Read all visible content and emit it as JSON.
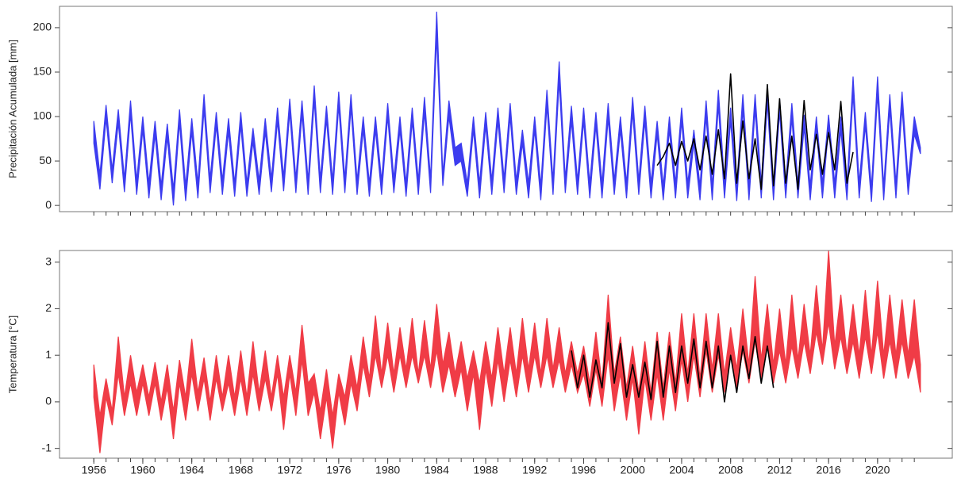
{
  "chart_data": [
    {
      "type": "band",
      "ylabel": "Precipitación Acumulada [mm]",
      "xlim": [
        1953.2,
        2026.1
      ],
      "ylim": [
        -7,
        224
      ],
      "yticks": [
        0,
        50,
        100,
        150,
        200
      ],
      "xminor": [
        1956,
        1957,
        1958,
        1959,
        1960,
        1961,
        1962,
        1963,
        1964,
        1965,
        1966,
        1967,
        1968,
        1969,
        1970,
        1971,
        1972,
        1973,
        1974,
        1975,
        1976,
        1977,
        1978,
        1979,
        1980,
        1981,
        1982,
        1983,
        1984,
        1985,
        1986,
        1987,
        1988,
        1989,
        1990,
        1991,
        1992,
        1993,
        1994,
        1995,
        1996,
        1997,
        1998,
        1999,
        2000,
        2001,
        2002,
        2003,
        2004,
        2005,
        2006,
        2007,
        2008,
        2009,
        2010,
        2011,
        2012,
        2013,
        2014,
        2015,
        2016,
        2017,
        2018,
        2019,
        2020,
        2021,
        2022,
        2023
      ],
      "x": [
        1956,
        1956.5,
        1957,
        1957.5,
        1958,
        1958.5,
        1959,
        1959.5,
        1960,
        1960.5,
        1961,
        1961.5,
        1962,
        1962.5,
        1963,
        1963.5,
        1964,
        1964.5,
        1965,
        1965.5,
        1966,
        1966.5,
        1967,
        1967.5,
        1968,
        1968.5,
        1969,
        1969.5,
        1970,
        1970.5,
        1971,
        1971.5,
        1972,
        1972.5,
        1973,
        1973.5,
        1974,
        1974.5,
        1975,
        1975.5,
        1976,
        1976.5,
        1977,
        1977.5,
        1978,
        1978.5,
        1979,
        1979.5,
        1980,
        1980.5,
        1981,
        1981.5,
        1982,
        1982.5,
        1983,
        1983.5,
        1984,
        1984.5,
        1985,
        1985.5,
        1986,
        1986.5,
        1987,
        1987.5,
        1988,
        1988.5,
        1989,
        1989.5,
        1990,
        1990.5,
        1991,
        1991.5,
        1992,
        1992.5,
        1993,
        1993.5,
        1994,
        1994.5,
        1995,
        1995.5,
        1996,
        1996.5,
        1997,
        1997.5,
        1998,
        1998.5,
        1999,
        1999.5,
        2000,
        2000.5,
        2001,
        2001.5,
        2002,
        2002.5,
        2003,
        2003.5,
        2004,
        2004.5,
        2005,
        2005.5,
        2006,
        2006.5,
        2007,
        2007.5,
        2008,
        2008.5,
        2009,
        2009.5,
        2010,
        2010.5,
        2011,
        2011.5,
        2012,
        2012.5,
        2013,
        2013.5,
        2014,
        2014.5,
        2015,
        2015.5,
        2016,
        2016.5,
        2017,
        2017.5,
        2018,
        2018.5,
        2019,
        2019.5,
        2020,
        2020.5,
        2021,
        2021.5,
        2022,
        2022.5,
        2023,
        2023.5
      ],
      "series": [
        {
          "color": "#3c3cef",
          "upper": [
            95,
            35,
            113,
            40,
            108,
            30,
            118,
            28,
            100,
            25,
            95,
            22,
            92,
            18,
            108,
            22,
            98,
            25,
            125,
            30,
            105,
            28,
            98,
            25,
            105,
            25,
            87,
            28,
            98,
            30,
            110,
            32,
            120,
            30,
            118,
            28,
            135,
            30,
            112,
            28,
            128,
            30,
            125,
            28,
            100,
            25,
            100,
            28,
            115,
            30,
            100,
            25,
            110,
            28,
            122,
            30,
            218,
            35,
            118,
            65,
            70,
            25,
            100,
            25,
            105,
            28,
            110,
            30,
            115,
            28,
            85,
            25,
            100,
            22,
            130,
            28,
            162,
            30,
            112,
            28,
            110,
            25,
            105,
            25,
            115,
            28,
            100,
            25,
            122,
            28,
            112,
            25,
            95,
            22,
            100,
            25,
            110,
            25,
            85,
            22,
            118,
            22,
            130,
            25,
            110,
            22,
            125,
            22,
            125,
            25,
            132,
            22,
            120,
            25,
            115,
            25,
            102,
            22,
            100,
            25,
            102,
            25,
            100,
            22,
            145,
            25,
            105,
            20,
            145,
            22,
            125,
            25,
            128,
            28,
            100,
            65
          ],
          "lower": [
            70,
            18,
            98,
            25,
            93,
            15,
            103,
            12,
            85,
            8,
            80,
            6,
            77,
            0,
            93,
            5,
            83,
            8,
            108,
            14,
            90,
            12,
            83,
            10,
            90,
            10,
            72,
            12,
            83,
            15,
            95,
            16,
            105,
            14,
            103,
            12,
            118,
            14,
            97,
            12,
            112,
            14,
            110,
            12,
            85,
            10,
            85,
            12,
            100,
            14,
            85,
            10,
            95,
            12,
            105,
            14,
            190,
            22,
            100,
            45,
            50,
            10,
            85,
            8,
            90,
            12,
            95,
            14,
            100,
            12,
            70,
            8,
            85,
            6,
            112,
            12,
            140,
            14,
            95,
            12,
            95,
            8,
            90,
            8,
            98,
            12,
            85,
            8,
            105,
            12,
            95,
            8,
            80,
            6,
            85,
            8,
            95,
            8,
            70,
            6,
            100,
            6,
            112,
            8,
            95,
            5,
            108,
            6,
            108,
            8,
            115,
            6,
            105,
            8,
            98,
            8,
            88,
            6,
            85,
            8,
            88,
            8,
            85,
            6,
            125,
            8,
            90,
            4,
            125,
            6,
            108,
            8,
            110,
            12,
            80,
            58
          ]
        }
      ],
      "lines": [
        {
          "color": "#000000",
          "x": [
            2002,
            2002.5,
            2003,
            2003.5,
            2004,
            2004.5,
            2005,
            2005.5,
            2006,
            2006.5,
            2007,
            2007.5,
            2008,
            2008.5,
            2009,
            2009.5,
            2010,
            2010.5,
            2011,
            2011.5,
            2012,
            2012.5,
            2013,
            2013.5,
            2014,
            2014.5,
            2015,
            2015.5,
            2016,
            2016.5,
            2017,
            2017.5,
            2018
          ],
          "values": [
            45,
            55,
            70,
            45,
            72,
            50,
            75,
            40,
            78,
            35,
            85,
            30,
            148,
            25,
            95,
            30,
            75,
            18,
            136,
            22,
            120,
            25,
            78,
            18,
            118,
            40,
            80,
            35,
            82,
            40,
            117,
            25,
            60
          ]
        }
      ]
    },
    {
      "type": "band",
      "ylabel": "Temperatura [°C]",
      "xlim": [
        1953.2,
        2026.1
      ],
      "ylim": [
        -1.21,
        3.25
      ],
      "yticks": [
        -1,
        0,
        1,
        2,
        3
      ],
      "xticks": [
        1956,
        1960,
        1964,
        1968,
        1972,
        1976,
        1980,
        1984,
        1988,
        1992,
        1996,
        2000,
        2004,
        2008,
        2012,
        2016,
        2020
      ],
      "xminor": [
        1956,
        1957,
        1958,
        1959,
        1960,
        1961,
        1962,
        1963,
        1964,
        1965,
        1966,
        1967,
        1968,
        1969,
        1970,
        1971,
        1972,
        1973,
        1974,
        1975,
        1976,
        1977,
        1978,
        1979,
        1980,
        1981,
        1982,
        1983,
        1984,
        1985,
        1986,
        1987,
        1988,
        1989,
        1990,
        1991,
        1992,
        1993,
        1994,
        1995,
        1996,
        1997,
        1998,
        1999,
        2000,
        2001,
        2002,
        2003,
        2004,
        2005,
        2006,
        2007,
        2008,
        2009,
        2010,
        2011,
        2012,
        2013,
        2014,
        2015,
        2016,
        2017,
        2018,
        2019,
        2020,
        2021,
        2022,
        2023
      ],
      "x": [
        1956,
        1956.5,
        1957,
        1957.5,
        1958,
        1958.5,
        1959,
        1959.5,
        1960,
        1960.5,
        1961,
        1961.5,
        1962,
        1962.5,
        1963,
        1963.5,
        1964,
        1964.5,
        1965,
        1965.5,
        1966,
        1966.5,
        1967,
        1967.5,
        1968,
        1968.5,
        1969,
        1969.5,
        1970,
        1970.5,
        1971,
        1971.5,
        1972,
        1972.5,
        1973,
        1973.5,
        1974,
        1974.5,
        1975,
        1975.5,
        1976,
        1976.5,
        1977,
        1977.5,
        1978,
        1978.5,
        1979,
        1979.5,
        1980,
        1980.5,
        1981,
        1981.5,
        1982,
        1982.5,
        1983,
        1983.5,
        1984,
        1984.5,
        1985,
        1985.5,
        1986,
        1986.5,
        1987,
        1987.5,
        1988,
        1988.5,
        1989,
        1989.5,
        1990,
        1990.5,
        1991,
        1991.5,
        1992,
        1992.5,
        1993,
        1993.5,
        1994,
        1994.5,
        1995,
        1995.5,
        1996,
        1996.5,
        1997,
        1997.5,
        1998,
        1998.5,
        1999,
        1999.5,
        2000,
        2000.5,
        2001,
        2001.5,
        2002,
        2002.5,
        2003,
        2003.5,
        2004,
        2004.5,
        2005,
        2005.5,
        2006,
        2006.5,
        2007,
        2007.5,
        2008,
        2008.5,
        2009,
        2009.5,
        2010,
        2010.5,
        2011,
        2011.5,
        2012,
        2012.5,
        2013,
        2013.5,
        2014,
        2014.5,
        2015,
        2015.5,
        2016,
        2016.5,
        2017,
        2017.5,
        2018,
        2018.5,
        2019,
        2019.5,
        2020,
        2020.5,
        2021,
        2021.5,
        2022,
        2022.5,
        2023,
        2023.5
      ],
      "series": [
        {
          "color": "#f03c46",
          "upper": [
            0.8,
            -0.3,
            0.5,
            -0.2,
            1.4,
            0.1,
            1.0,
            0.2,
            0.8,
            0.1,
            0.85,
            0.0,
            0.8,
            -0.2,
            0.9,
            0.1,
            1.35,
            0.2,
            0.95,
            0.0,
            1.0,
            0.1,
            1.0,
            0.1,
            1.1,
            0.1,
            1.3,
            0.2,
            1.1,
            0.1,
            1.0,
            0.1,
            1.0,
            0.2,
            1.65,
            0.4,
            0.6,
            -0.2,
            0.7,
            -0.3,
            0.6,
            0.1,
            1.0,
            0.3,
            1.4,
            0.5,
            1.85,
            0.6,
            1.7,
            0.6,
            1.6,
            0.7,
            1.8,
            0.6,
            1.75,
            0.7,
            2.1,
            0.8,
            1.5,
            0.6,
            1.3,
            0.5,
            1.1,
            0.4,
            1.3,
            0.5,
            1.6,
            0.6,
            1.6,
            0.6,
            1.8,
            0.7,
            1.7,
            0.6,
            1.8,
            0.7,
            1.6,
            0.6,
            1.3,
            0.6,
            1.2,
            0.4,
            1.5,
            0.4,
            2.3,
            0.6,
            1.4,
            0.3,
            1.2,
            0.2,
            1.3,
            0.2,
            1.5,
            0.3,
            1.5,
            0.4,
            1.9,
            0.6,
            1.9,
            0.5,
            1.9,
            0.7,
            1.9,
            0.6,
            1.6,
            0.7,
            2.0,
            0.8,
            2.7,
            0.9,
            2.1,
            0.8,
            2.0,
            0.8,
            2.3,
            0.9,
            2.1,
            1.0,
            2.5,
            1.1,
            3.25,
            1.2,
            2.3,
            1.0,
            2.1,
            1.0,
            2.4,
            1.0,
            2.6,
            1.0,
            2.3,
            1.0,
            2.2,
            1.0,
            2.2,
            0.8
          ],
          "lower": [
            0.1,
            -1.1,
            0.1,
            -0.5,
            0.6,
            -0.3,
            0.4,
            -0.3,
            0.4,
            -0.3,
            0.4,
            -0.4,
            0.3,
            -0.8,
            0.4,
            -0.4,
            0.6,
            -0.2,
            0.5,
            -0.4,
            0.5,
            -0.2,
            0.4,
            -0.3,
            0.5,
            -0.3,
            0.6,
            -0.2,
            0.5,
            -0.2,
            0.6,
            -0.6,
            0.6,
            -0.3,
            0.9,
            -0.3,
            0.2,
            -0.8,
            0.1,
            -1.0,
            0.2,
            -0.5,
            0.4,
            -0.2,
            0.8,
            0.1,
            1.0,
            0.3,
            1.0,
            0.2,
            1.0,
            0.3,
            1.0,
            0.4,
            1.0,
            0.3,
            1.1,
            0.2,
            0.8,
            0.1,
            0.7,
            -0.2,
            0.6,
            -0.6,
            0.7,
            -0.1,
            0.9,
            0.0,
            0.9,
            0.1,
            1.0,
            0.2,
            1.0,
            0.3,
            1.0,
            0.3,
            0.9,
            0.2,
            0.8,
            0.2,
            0.6,
            -0.1,
            0.7,
            -0.1,
            1.0,
            -0.2,
            0.6,
            -0.4,
            0.5,
            -0.7,
            0.5,
            -0.4,
            0.6,
            -0.4,
            0.7,
            -0.2,
            0.9,
            0.0,
            1.0,
            0.1,
            1.1,
            0.2,
            1.0,
            0.2,
            1.0,
            0.3,
            1.1,
            0.4,
            1.3,
            0.5,
            1.2,
            0.4,
            1.1,
            0.4,
            1.2,
            0.5,
            1.3,
            0.6,
            1.5,
            0.8,
            1.7,
            0.7,
            1.4,
            0.6,
            1.3,
            0.5,
            1.4,
            0.6,
            1.5,
            0.5,
            1.3,
            0.5,
            1.3,
            0.5,
            1.0,
            0.2
          ]
        }
      ],
      "lines": [
        {
          "color": "#000000",
          "x": [
            1995,
            1995.5,
            1996,
            1996.5,
            1997,
            1997.5,
            1998,
            1998.5,
            1999,
            1999.5,
            2000,
            2000.5,
            2001,
            2001.5,
            2002,
            2002.5,
            2003,
            2003.5,
            2004,
            2004.5,
            2005,
            2005.5,
            2006,
            2006.5,
            2007,
            2007.5,
            2008,
            2008.5,
            2009,
            2009.5,
            2010,
            2010.5,
            2011,
            2011.5
          ],
          "values": [
            1.1,
            0.3,
            1.0,
            0.1,
            0.9,
            0.3,
            1.7,
            0.4,
            1.25,
            0.1,
            0.8,
            0.1,
            0.85,
            0.05,
            1.3,
            0.1,
            1.2,
            0.2,
            1.2,
            0.4,
            1.35,
            0.3,
            1.3,
            0.3,
            1.2,
            0.0,
            1.0,
            0.2,
            1.2,
            0.5,
            1.4,
            0.4,
            1.2,
            0.3
          ]
        }
      ]
    }
  ]
}
